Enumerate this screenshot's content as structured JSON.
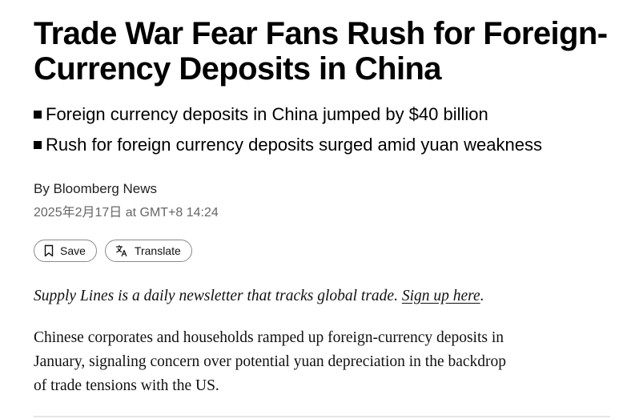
{
  "article": {
    "headline": "Trade War Fear Fans Rush for Foreign-Currency Deposits in China",
    "bullets": [
      "Foreign currency deposits in China jumped by $40 billion",
      "Rush for foreign currency deposits surged amid yuan weakness"
    ],
    "byline": "By Bloomberg News",
    "timestamp": "2025年2月17日 at GMT+8 14:24",
    "actions": {
      "save_label": "Save",
      "save_icon": "bookmark-icon",
      "translate_label": "Translate",
      "translate_icon": "translate-icon"
    },
    "newsletter": {
      "text": "Supply Lines is a daily newsletter that tracks global trade.",
      "link_text": "Sign up here",
      "trailing": "."
    },
    "body": "Chinese corporates and households ramped up foreign-currency deposits in January, signaling concern over potential yuan depreciation in the backdrop of trade tensions with the US."
  }
}
